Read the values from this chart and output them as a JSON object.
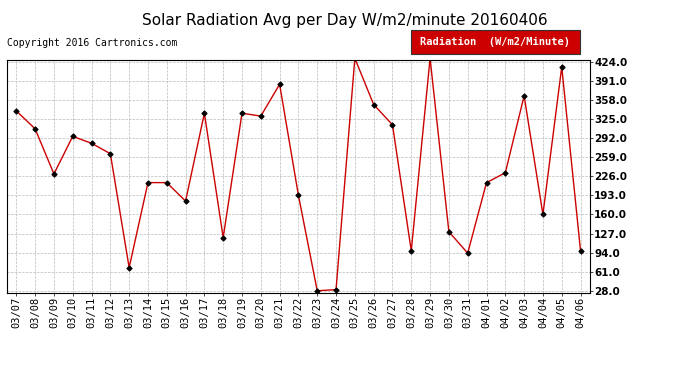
{
  "title": "Solar Radiation Avg per Day W/m2/minute 20160406",
  "copyright": "Copyright 2016 Cartronics.com",
  "legend_label": "Radiation  (W/m2/Minute)",
  "dates": [
    "03/07",
    "03/08",
    "03/09",
    "03/10",
    "03/11",
    "03/12",
    "03/13",
    "03/14",
    "03/15",
    "03/16",
    "03/17",
    "03/18",
    "03/19",
    "03/20",
    "03/21",
    "03/22",
    "03/23",
    "03/24",
    "03/25",
    "03/26",
    "03/27",
    "03/28",
    "03/29",
    "03/30",
    "03/31",
    "04/01",
    "04/02",
    "04/03",
    "04/04",
    "04/05",
    "04/06"
  ],
  "values": [
    339,
    308,
    230,
    295,
    283,
    265,
    68,
    215,
    215,
    183,
    335,
    120,
    335,
    330,
    385,
    193,
    28,
    30,
    430,
    350,
    315,
    97,
    430,
    130,
    93,
    215,
    232,
    365,
    160,
    415,
    97
  ],
  "line_color": "#cc0000",
  "marker_color": "#000000",
  "background_color": "#ffffff",
  "plot_bg_color": "#ffffff",
  "grid_color": "#bbbbbb",
  "legend_bg": "#cc0000",
  "legend_text_color": "#ffffff",
  "ymin": 28.0,
  "ymax": 424.0,
  "yticks": [
    28.0,
    61.0,
    94.0,
    127.0,
    160.0,
    193.0,
    226.0,
    259.0,
    292.0,
    325.0,
    358.0,
    391.0,
    424.0
  ],
  "title_fontsize": 11,
  "copyright_fontsize": 7,
  "tick_fontsize": 7.5,
  "legend_fontsize": 7.5
}
